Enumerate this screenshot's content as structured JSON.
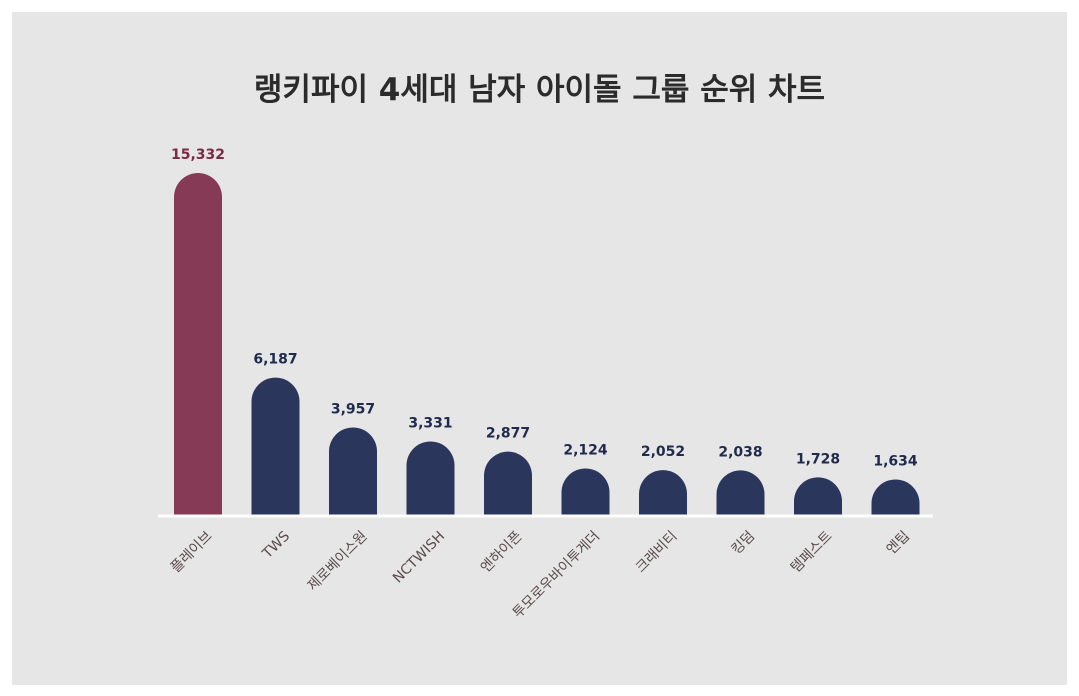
{
  "chart_data": {
    "type": "bar",
    "title": "랭키파이 4세대 남자 아이돌 그룹 순위 차트",
    "categories": [
      "플레이브",
      "TWS",
      "제로베이스원",
      "NCTWISH",
      "엔하이픈",
      "투모로우바이투게더",
      "크래비티",
      "킹덤",
      "템페스트",
      "엔팁"
    ],
    "values": [
      15332,
      6187,
      3957,
      3331,
      2877,
      2124,
      2052,
      2038,
      1728,
      1634
    ],
    "value_labels": [
      "15,332",
      "6,187",
      "3,957",
      "3,331",
      "2,877",
      "2,124",
      "2,052",
      "2,038",
      "1,728",
      "1,634"
    ],
    "ylim": [
      0,
      15332
    ],
    "grid": false,
    "legend": "none",
    "colors": {
      "highlight": "#873a55",
      "bar": "#2b365c",
      "highlight_label": "#7a2a45",
      "label": "#1f2a4d",
      "category_label": "#5a4a4a",
      "baseline": "#ffffff"
    }
  }
}
